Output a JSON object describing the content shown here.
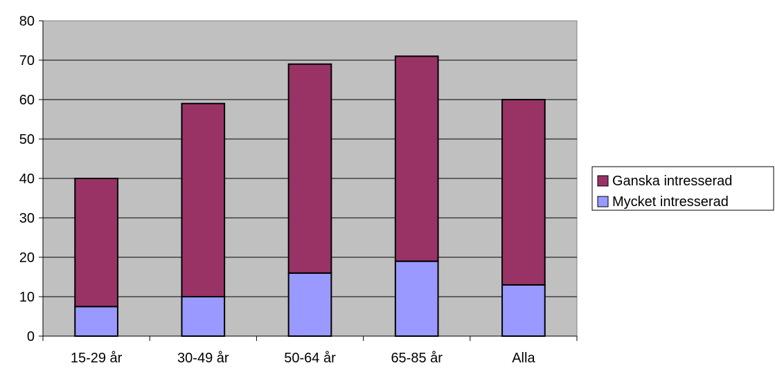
{
  "chart_data": {
    "type": "bar",
    "stacked": true,
    "categories": [
      "15-29 år",
      "30-49 år",
      "50-64 år",
      "65-85 år",
      "Alla"
    ],
    "series": [
      {
        "name": "Mycket intresserad",
        "values": [
          7.5,
          10,
          16,
          19,
          13
        ],
        "color": "#9999ff"
      },
      {
        "name": "Ganska intresserad",
        "values": [
          32.5,
          49,
          53,
          52,
          47
        ],
        "color": "#993366"
      }
    ],
    "title": "",
    "xlabel": "",
    "ylabel": "",
    "ylim": [
      0,
      80
    ],
    "yticks": [
      0,
      10,
      20,
      30,
      40,
      50,
      60,
      70,
      80
    ],
    "grid": true,
    "plot_background": "#c0c0c0",
    "legend_position": "right",
    "legend_order": [
      "Ganska intresserad",
      "Mycket intresserad"
    ]
  }
}
